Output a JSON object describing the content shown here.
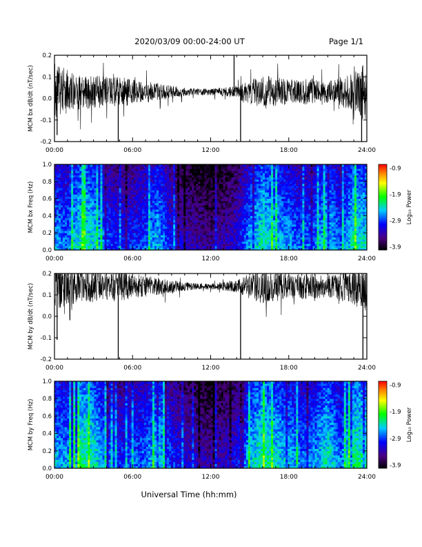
{
  "header": {
    "date_range": "2020/03/09  00:00-24:00 UT",
    "page": "Page 1/1"
  },
  "xlabel": "Universal Time (hh:mm)",
  "colorbar": {
    "label": "Log₁₀ Power",
    "ticks": [
      "-0.9",
      "-1.9",
      "-2.9",
      "-3.9"
    ]
  },
  "chart_data": [
    {
      "type": "line",
      "name": "bx-waveform",
      "ylabel": "MCM bx dB/dt (nT/sec)",
      "xlim": [
        0,
        24
      ],
      "ylim": [
        -0.2,
        0.2
      ],
      "xticks": [
        "00:00",
        "06:00",
        "12:00",
        "18:00",
        "24:00"
      ],
      "yticks": [
        "0.2",
        "0.1",
        "0.0",
        "-0.1",
        "-0.2"
      ],
      "baseline": 0.03,
      "envelope_hours": [
        0,
        1,
        2,
        3,
        4,
        5,
        6,
        7,
        8,
        9,
        10,
        11,
        12,
        13,
        14,
        15,
        16,
        17,
        18,
        19,
        20,
        21,
        22,
        23,
        24
      ],
      "envelope_amplitude": [
        0.14,
        0.1,
        0.08,
        0.08,
        0.07,
        0.07,
        0.06,
        0.05,
        0.04,
        0.03,
        0.02,
        0.015,
        0.015,
        0.02,
        0.03,
        0.06,
        0.08,
        0.07,
        0.06,
        0.06,
        0.06,
        0.05,
        0.07,
        0.09,
        0.14
      ],
      "spikes": [
        {
          "t": 4.9,
          "v": -0.2
        },
        {
          "t": 14.3,
          "v": -0.2
        },
        {
          "t": 13.8,
          "v": 0.2
        },
        {
          "t": 0.2,
          "v": -0.17
        },
        {
          "t": 23.6,
          "v": -0.2
        }
      ]
    },
    {
      "type": "heatmap",
      "name": "bx-spectrogram",
      "ylabel": "MCM bx Freq (Hz)",
      "xlim": [
        0,
        24
      ],
      "ylim": [
        0,
        1
      ],
      "xticks": [
        "00:00",
        "06:00",
        "12:00",
        "18:00",
        "24:00"
      ],
      "yticks": [
        "1.0",
        "0.8",
        "0.6",
        "0.4",
        "0.2",
        "0.0"
      ],
      "zlim": [
        -3.9,
        -0.9
      ],
      "activity_hours": [
        0,
        1,
        2,
        3,
        4,
        5,
        6,
        7,
        8,
        9,
        10,
        11,
        12,
        13,
        14,
        15,
        16,
        17,
        18,
        19,
        20,
        21,
        22,
        23,
        24
      ],
      "activity_log_power": [
        -2.6,
        -2.7,
        -2.3,
        -2.4,
        -2.8,
        -3.0,
        -2.9,
        -2.8,
        -2.5,
        -3.0,
        -3.2,
        -3.3,
        -3.4,
        -3.3,
        -3.1,
        -2.6,
        -2.3,
        -2.5,
        -2.6,
        -2.8,
        -2.7,
        -2.4,
        -2.8,
        -2.3,
        -2.4
      ]
    },
    {
      "type": "line",
      "name": "by-waveform",
      "ylabel": "MCM by dB/dt (nT/sec)",
      "xlim": [
        0,
        24
      ],
      "ylim": [
        -0.2,
        0.2
      ],
      "xticks": [
        "00:00",
        "06:00",
        "12:00",
        "18:00",
        "24:00"
      ],
      "yticks": [
        "0.2",
        "0.1",
        "0.0",
        "-0.1",
        "-0.2"
      ],
      "baseline": 0.14,
      "envelope_hours": [
        0,
        1,
        2,
        3,
        4,
        5,
        6,
        7,
        8,
        9,
        10,
        11,
        12,
        13,
        14,
        15,
        16,
        17,
        18,
        19,
        20,
        21,
        22,
        23,
        24
      ],
      "envelope_amplitude": [
        0.12,
        0.09,
        0.08,
        0.08,
        0.07,
        0.07,
        0.06,
        0.05,
        0.04,
        0.03,
        0.02,
        0.015,
        0.015,
        0.02,
        0.03,
        0.06,
        0.08,
        0.07,
        0.06,
        0.06,
        0.06,
        0.05,
        0.07,
        0.09,
        0.12
      ],
      "spikes": [
        {
          "t": 4.9,
          "v": -0.2
        },
        {
          "t": 14.3,
          "v": -0.2
        },
        {
          "t": 0.2,
          "v": -0.11
        },
        {
          "t": 23.7,
          "v": -0.2
        }
      ]
    },
    {
      "type": "heatmap",
      "name": "by-spectrogram",
      "ylabel": "MCM by Freq (Hz)",
      "xlim": [
        0,
        24
      ],
      "ylim": [
        0,
        1
      ],
      "xticks": [
        "00:00",
        "06:00",
        "12:00",
        "18:00",
        "24:00"
      ],
      "yticks": [
        "1.0",
        "0.8",
        "0.6",
        "0.4",
        "0.2",
        "0.0"
      ],
      "zlim": [
        -3.9,
        -0.9
      ],
      "activity_hours": [
        0,
        1,
        2,
        3,
        4,
        5,
        6,
        7,
        8,
        9,
        10,
        11,
        12,
        13,
        14,
        15,
        16,
        17,
        18,
        19,
        20,
        21,
        22,
        23,
        24
      ],
      "activity_log_power": [
        -2.5,
        -2.6,
        -2.2,
        -2.3,
        -2.7,
        -2.9,
        -2.8,
        -2.7,
        -2.4,
        -2.9,
        -3.1,
        -3.2,
        -3.3,
        -3.2,
        -3.0,
        -2.5,
        -2.2,
        -2.4,
        -2.5,
        -2.7,
        -2.6,
        -2.3,
        -2.7,
        -2.2,
        -2.3
      ]
    }
  ]
}
